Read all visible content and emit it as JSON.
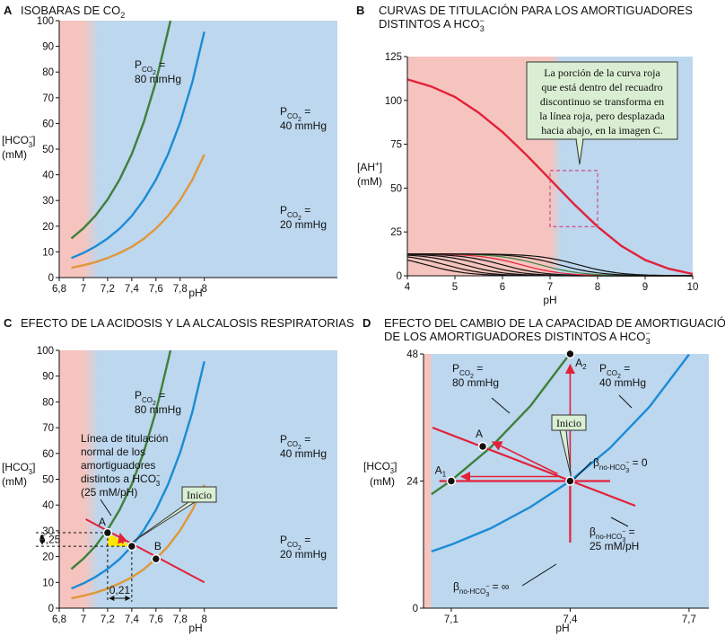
{
  "colors": {
    "acid_zone": "#f6c4be",
    "base_zone": "#bcd7ee",
    "green": "#3f7f3a",
    "blue": "#1b8bd6",
    "orange": "#e0973a",
    "red": "#e2213a",
    "callout_bg": "#d9eed2",
    "highlight": "#ffe600",
    "dashed_box": "#d04a8a"
  },
  "chart_data": [
    {
      "id": "A",
      "letter": "A",
      "title": "ISOBARAS DE CO",
      "title_sub": "2",
      "type": "line",
      "xlabel": "pH",
      "ylabel": "[HCO3−] (mM)",
      "xlim": [
        6.8,
        9.1
      ],
      "ylim": [
        0,
        100
      ],
      "xticks": [
        "6,8",
        "7",
        "7,2",
        "7,4",
        "7,6",
        "7,8",
        "8"
      ],
      "yticks": [
        "0",
        "10",
        "20",
        "30",
        "40",
        "50",
        "60",
        "70",
        "80",
        "90",
        "100"
      ],
      "zones": {
        "acid_until_pH": 7.0,
        "gradient_to_pH": 7.13
      },
      "series": [
        {
          "name": "PCO2 = 80 mmHg",
          "pCO2": 80,
          "x": [
            6.9,
            7.0,
            7.1,
            7.2,
            7.3,
            7.4,
            7.5,
            7.6,
            7.7,
            7.72
          ],
          "y": [
            15.2,
            19.2,
            24.1,
            30.4,
            38.2,
            48.1,
            60.6,
            76.3,
            96.0,
            100.0
          ]
        },
        {
          "name": "PCO2 = 40 mmHg",
          "pCO2": 40,
          "x": [
            6.9,
            7.0,
            7.1,
            7.2,
            7.3,
            7.4,
            7.5,
            7.6,
            7.7,
            7.8,
            7.9,
            8.0
          ],
          "y": [
            7.6,
            9.6,
            12.1,
            15.2,
            19.1,
            24.0,
            30.3,
            38.1,
            48.0,
            60.4,
            76.0,
            95.7
          ]
        },
        {
          "name": "PCO2 = 20 mmHg",
          "pCO2": 20,
          "x": [
            6.9,
            7.0,
            7.1,
            7.2,
            7.3,
            7.4,
            7.5,
            7.6,
            7.7,
            7.8,
            7.9,
            8.0
          ],
          "y": [
            3.8,
            4.8,
            6.0,
            7.6,
            9.6,
            12.0,
            15.1,
            19.1,
            24.0,
            30.2,
            38.0,
            47.9
          ]
        }
      ]
    },
    {
      "id": "B",
      "letter": "B",
      "title": "CURVAS DE TITULACIÓN PARA LOS AMORTIGUADORES",
      "title_line2": "DISTINTOS A HCO",
      "title_sub": "3",
      "title_sup": "−",
      "type": "line",
      "xlabel": "pH",
      "ylabel": "[AH+] (mM)",
      "xlim": [
        4,
        10
      ],
      "ylim": [
        0,
        125
      ],
      "xticks": [
        "4",
        "5",
        "6",
        "7",
        "8",
        "9",
        "10"
      ],
      "yticks": [
        "0",
        "25",
        "50",
        "75",
        "100",
        "125"
      ],
      "zones": {
        "acid_until_pH": 7.0,
        "gradient_to_pH": 7.25
      },
      "series": [
        {
          "name": "red titration curve",
          "x": [
            4,
            4.5,
            5,
            5.5,
            6,
            6.5,
            7,
            7.5,
            8,
            8.5,
            9,
            9.5,
            10
          ],
          "y": [
            112,
            108,
            102,
            93,
            82,
            69,
            55,
            41,
            28,
            17,
            9,
            4,
            1
          ]
        },
        {
          "name": "low-capacity buffers (pK 4.5–7.7)",
          "x": [
            4,
            10
          ],
          "y": [
            12.5,
            0
          ]
        }
      ],
      "callout": [
        "La porción de la curva roja",
        "que está dentro del recuadro",
        "discontinuo se transforma en",
        "la línea roja, pero desplazada",
        "hacia abajo, en la imagen C."
      ],
      "dashed_box": {
        "x": [
          7.0,
          8.0
        ],
        "y": [
          28,
          60
        ]
      }
    },
    {
      "id": "C",
      "letter": "C",
      "title": "EFECTO DE LA ACIDOSIS Y LA ALCALOSIS RESPIRATORIAS",
      "type": "line",
      "xlabel": "pH",
      "ylabel": "[HCO3−] (mM)",
      "xlim": [
        6.8,
        9.1
      ],
      "ylim": [
        0,
        100
      ],
      "xticks": [
        "6,8",
        "7",
        "7,2",
        "7,4",
        "7,6",
        "7,8",
        "8"
      ],
      "yticks": [
        "0",
        "10",
        "20",
        "30",
        "40",
        "50",
        "60",
        "70",
        "80",
        "90",
        "100"
      ],
      "series_ref": "A",
      "titration_line": {
        "x": [
          7.02,
          8.0
        ],
        "y": [
          34.5,
          10.0
        ]
      },
      "points": [
        {
          "label": "A",
          "x": 7.2,
          "y": 29.25
        },
        {
          "label": "Inicio",
          "x": 7.4,
          "y": 24.0
        },
        {
          "label": "B",
          "x": 7.6,
          "y": 19.1
        }
      ],
      "delta_y": "5,25",
      "delta_x": "0,21",
      "annotation": [
        "Línea de titulación",
        "normal de los",
        "amortiguadores",
        "distintos a HCO",
        "(25 mM/pH)"
      ],
      "start_label": "Inicio"
    },
    {
      "id": "D",
      "letter": "D",
      "title": "EFECTO DEL CAMBIO DE LA CAPACIDAD DE AMORTIGUACIÓN",
      "title_line2": "DE LOS AMORTIGUADORES DISTINTOS A HCO",
      "title_sub": "3",
      "title_sup": "−",
      "type": "line",
      "xlabel": "pH",
      "ylabel": "[HCO3−] (mM)",
      "xlim": [
        7.03,
        7.75
      ],
      "ylim": [
        0,
        48
      ],
      "xticks": [
        "7,1",
        "7,4",
        "7,7"
      ],
      "yticks": [
        "0",
        "24",
        "48"
      ],
      "series": [
        {
          "name": "PCO2 = 80 mmHg",
          "pCO2": 80,
          "x": [
            7.05,
            7.1,
            7.2,
            7.3,
            7.4
          ],
          "y": [
            21.5,
            24.1,
            30.4,
            38.2,
            48.1
          ]
        },
        {
          "name": "PCO2 = 40 mmHg",
          "pCO2": 40,
          "x": [
            7.05,
            7.1,
            7.2,
            7.3,
            7.4,
            7.5,
            7.6,
            7.7
          ],
          "y": [
            10.7,
            12.0,
            15.1,
            19.1,
            24.0,
            30.2,
            38.0,
            47.9
          ]
        }
      ],
      "points": [
        {
          "label": "A1",
          "x": 7.1,
          "y": 24
        },
        {
          "label": "A",
          "x": 7.21,
          "y": 30.6
        },
        {
          "label": "A2",
          "x": 7.4,
          "y": 48
        },
        {
          "label": "Inicio",
          "x": 7.4,
          "y": 24
        }
      ],
      "beta_lines": [
        {
          "label": "βno-HCO3− = 0",
          "slope": "0"
        },
        {
          "label": "βno-HCO3− = 25 mM/pH",
          "slope": "25 mM/pH"
        },
        {
          "label": "βno-HCO3− = ∞",
          "slope": "∞"
        }
      ],
      "start_label": "Inicio"
    }
  ]
}
